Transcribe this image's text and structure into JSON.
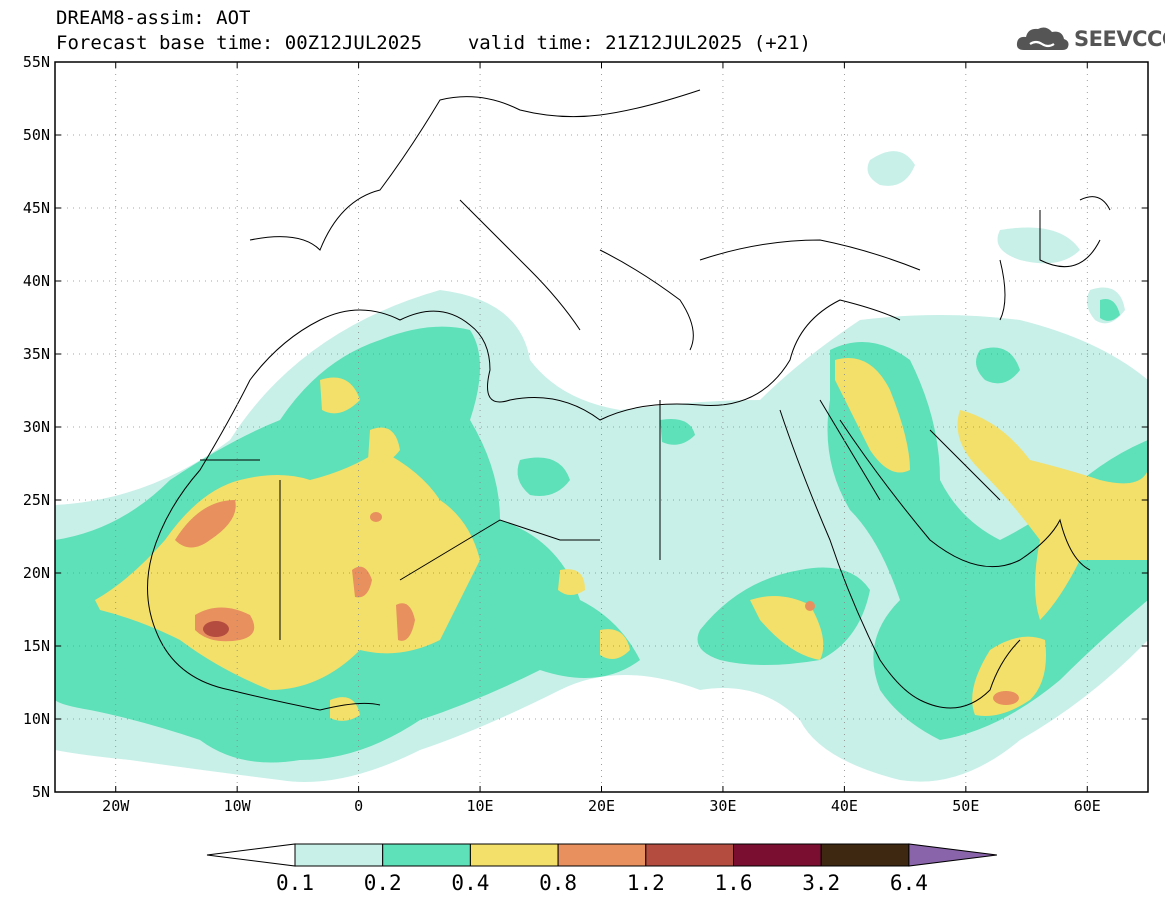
{
  "header": {
    "product": "DREAM8-assim: AOT",
    "base_time": "Forecast base time: 00Z12JUL2025",
    "valid_time": "valid time: 21Z12JUL2025 (+21)"
  },
  "logo": {
    "text": "SEEVCCC",
    "icon": "cloud-icon"
  },
  "map": {
    "lat_labels": [
      "55N",
      "50N",
      "45N",
      "40N",
      "35N",
      "30N",
      "25N",
      "20N",
      "15N",
      "10N",
      "5N"
    ],
    "lon_labels": [
      "20W",
      "10W",
      "0",
      "10E",
      "20E",
      "30E",
      "40E",
      "50E",
      "60E"
    ],
    "lat_range": [
      5,
      55
    ],
    "lon_range": [
      -25,
      65
    ]
  },
  "colorbar": {
    "labels": [
      "0.1",
      "0.2",
      "0.4",
      "0.8",
      "1.2",
      "1.6",
      "3.2",
      "6.4"
    ],
    "colors": [
      "#ffffff",
      "#c8f0e8",
      "#5ee0b8",
      "#f2e06a",
      "#e8905e",
      "#b44c40",
      "#7a0e30",
      "#3e2812",
      "#8a64aa"
    ]
  },
  "colors": {
    "c1": "#c8f0e8",
    "c2": "#5ee0b8",
    "c3": "#f2e06a",
    "c4": "#e8905e",
    "c5": "#b44c40"
  }
}
